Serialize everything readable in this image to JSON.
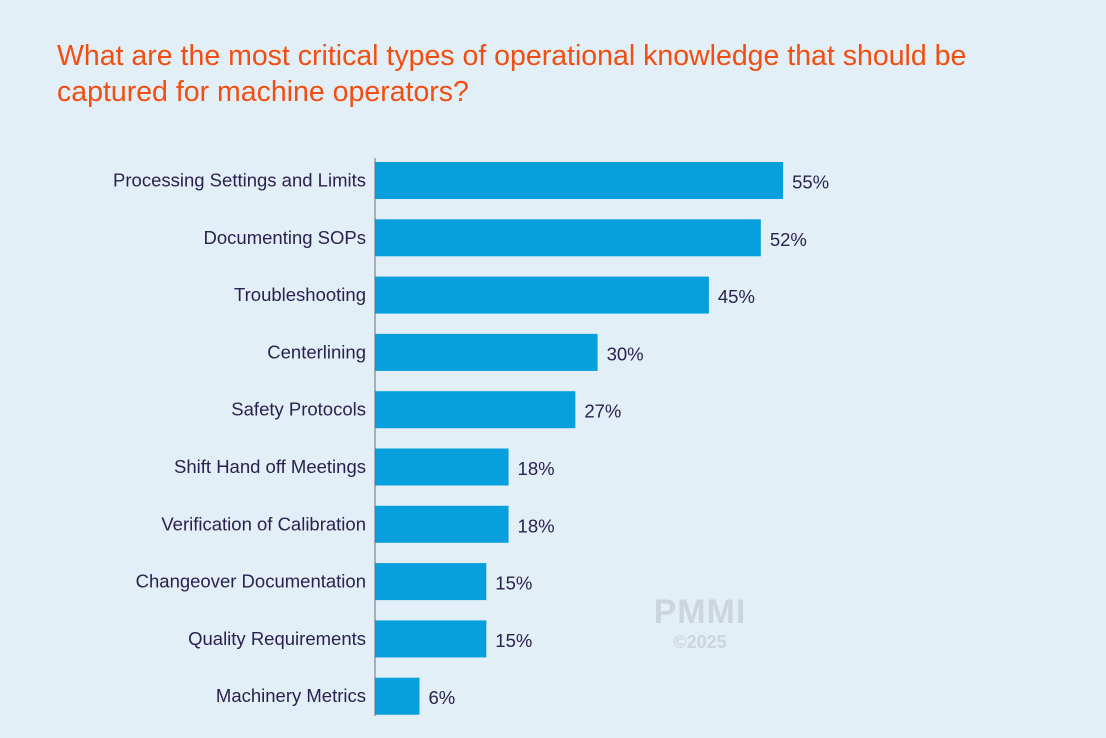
{
  "chart_data": {
    "type": "bar",
    "orientation": "horizontal",
    "title": "What are the most critical types of operational knowledge that should be captured for machine operators?",
    "categories": [
      "Processing Settings and Limits",
      "Documenting SOPs",
      "Troubleshooting",
      "Centerlining",
      "Safety Protocols",
      "Shift Hand off Meetings",
      "Verification of Calibration",
      "Changeover Documentation",
      "Quality Requirements",
      "Machinery Metrics"
    ],
    "values": [
      55,
      52,
      45,
      30,
      27,
      18,
      18,
      15,
      15,
      6
    ],
    "value_labels": [
      "55%",
      "52%",
      "45%",
      "30%",
      "27%",
      "18%",
      "18%",
      "15%",
      "15%",
      "6%"
    ],
    "xlim": [
      0,
      100
    ],
    "grid": false,
    "legend": "none",
    "colors": {
      "bar": "#079fdc",
      "title": "#f04e12",
      "text": "#2b2150",
      "background": "#e3eff6"
    }
  },
  "watermark": {
    "logo": "PMMI",
    "copyright": "©2025"
  }
}
